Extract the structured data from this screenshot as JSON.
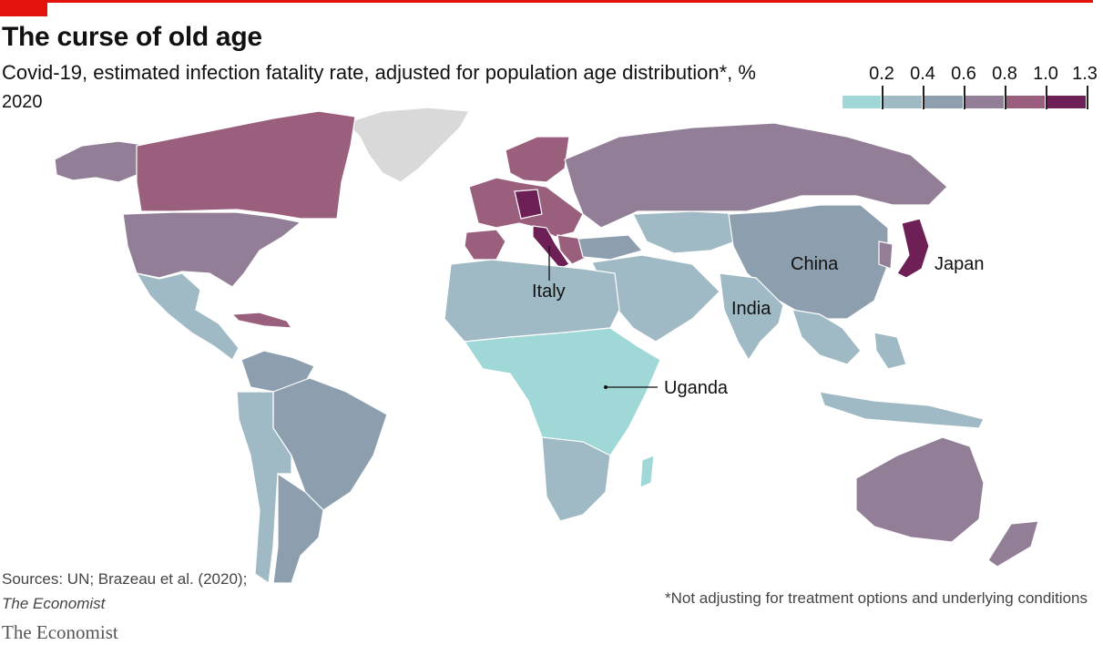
{
  "title": "The curse of old age",
  "subtitle": "Covid-19, estimated infection fatality rate, adjusted for population age distribution*, %",
  "year": "2020",
  "legend": {
    "ticks": [
      "0.2",
      "0.4",
      "0.6",
      "0.8",
      "1.0",
      "1.3"
    ],
    "colors": [
      "#9fd8d6",
      "#9fbac4",
      "#8d9fae",
      "#927f97",
      "#9b5f7e",
      "#6e1f56"
    ]
  },
  "colors": {
    "accent": "#e3120b",
    "no_data": "#d9d9d9"
  },
  "labels": {
    "italy": "Italy",
    "china": "China",
    "japan": "Japan",
    "india": "India",
    "uganda": "Uganda"
  },
  "source_line1": "Sources: UN; Brazeau et al. (2020);",
  "source_line2": "The Economist",
  "footnote": "*Not adjusting for treatment options and underlying conditions",
  "brand": "The Economist"
}
